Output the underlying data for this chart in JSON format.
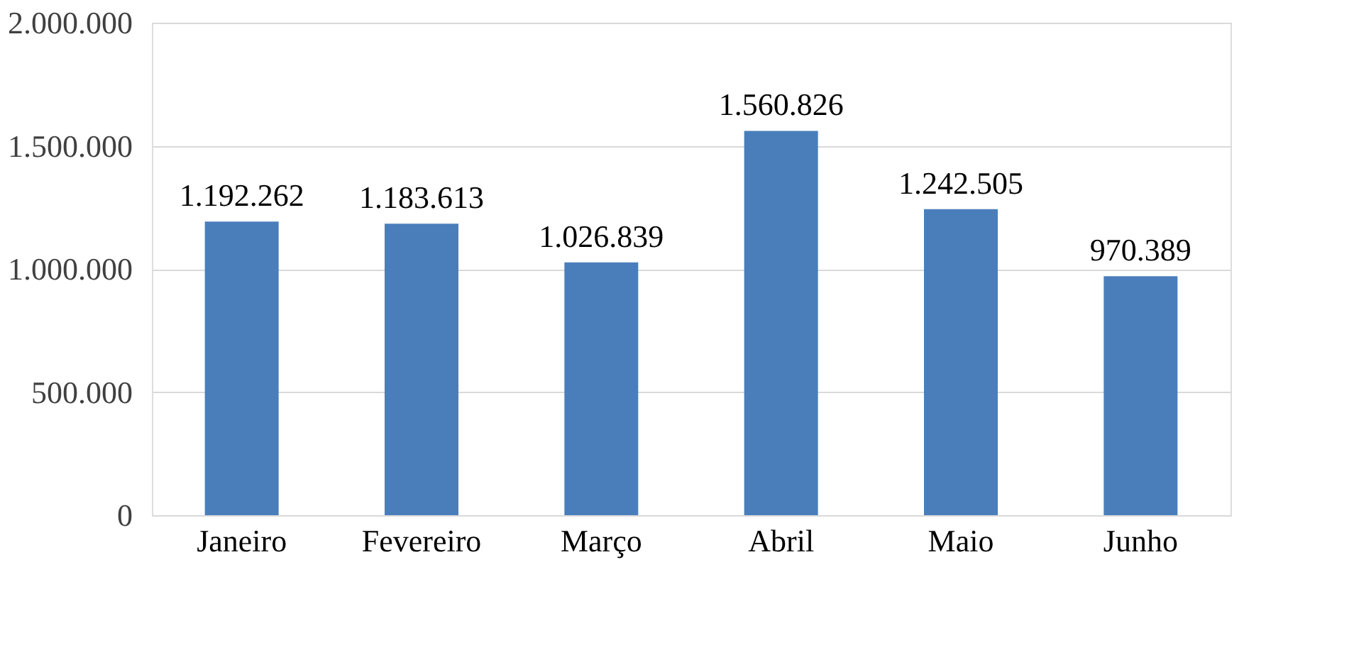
{
  "chart_data": {
    "type": "bar",
    "categories": [
      "Janeiro",
      "Fevereiro",
      "Março",
      "Abril",
      "Maio",
      "Junho"
    ],
    "values": [
      1192262,
      1183613,
      1026839,
      1560826,
      1242505,
      970389
    ],
    "value_labels": [
      "1.192.262",
      "1.183.613",
      "1.026.839",
      "1.560.826",
      "1.242.505",
      "970.389"
    ],
    "color": "#4a7ebb",
    "ylim": [
      0,
      2000000
    ],
    "yticks": [
      0,
      {
        "value": 500000,
        "label": "500.000"
      },
      {
        "value": 1000000,
        "label": "1.000.000"
      },
      {
        "value": 1500000,
        "label": "1.500.000"
      },
      {
        "value": 2000000,
        "label": "2.000.000"
      }
    ],
    "grid": "y"
  }
}
